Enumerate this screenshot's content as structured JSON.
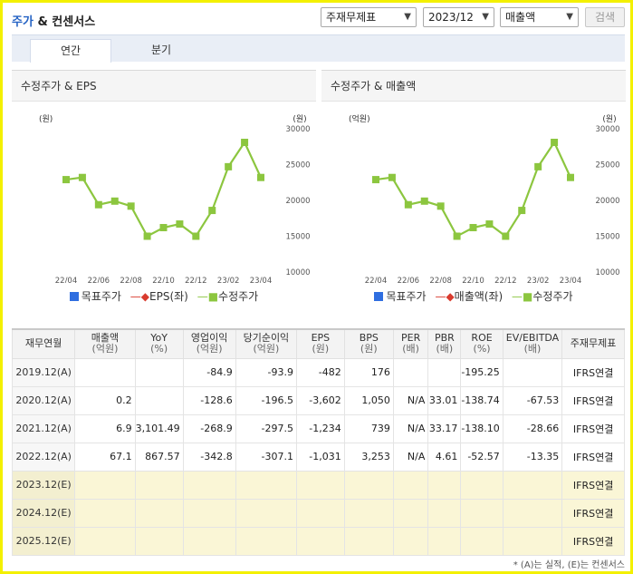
{
  "header": {
    "title_blue": "주가",
    "title_rest": " & 컨센서스",
    "select_item": "주재무제표",
    "select_period": "2023/12",
    "select_metric": "매출액",
    "search_label": "검색"
  },
  "tabs": [
    {
      "label": "연간"
    },
    {
      "label": "분기"
    }
  ],
  "charts": [
    {
      "panel_title": "수정주가 & EPS",
      "left_unit": "(원)",
      "right_unit": "(원)",
      "legend": [
        "목표주가",
        "EPS(좌)",
        "수정주가"
      ]
    },
    {
      "panel_title": "수정주가 & 매출액",
      "left_unit": "(억원)",
      "right_unit": "(원)",
      "legend": [
        "목표주가",
        "매출액(좌)",
        "수정주가"
      ]
    }
  ],
  "chart_data": [
    {
      "type": "line",
      "x": [
        "22/04",
        "22/05",
        "22/06",
        "22/07",
        "22/08",
        "22/09",
        "22/10",
        "22/11",
        "22/12",
        "23/01",
        "23/02",
        "23/03",
        "23/04"
      ],
      "x_tick_labels": [
        "22/04",
        "22/06",
        "22/08",
        "22/10",
        "22/12",
        "23/02",
        "23/04"
      ],
      "series": [
        {
          "name": "수정주가",
          "values": [
            22900,
            23200,
            19400,
            19900,
            19200,
            15000,
            16200,
            16700,
            15000,
            18600,
            24700,
            28100,
            23200
          ]
        }
      ],
      "y_right_ticks": [
        "30000",
        "25000",
        "20000",
        "15000",
        "10000"
      ],
      "y_right_range": [
        10000,
        30000
      ],
      "colors": {
        "target": "#2f6ee0",
        "eps": "#d93b2e",
        "price": "#8cc63f"
      }
    },
    {
      "type": "line",
      "x": [
        "22/04",
        "22/05",
        "22/06",
        "22/07",
        "22/08",
        "22/09",
        "22/10",
        "22/11",
        "22/12",
        "23/01",
        "23/02",
        "23/03",
        "23/04"
      ],
      "x_tick_labels": [
        "22/04",
        "22/06",
        "22/08",
        "22/10",
        "22/12",
        "23/02",
        "23/04"
      ],
      "series": [
        {
          "name": "수정주가",
          "values": [
            22900,
            23200,
            19400,
            19900,
            19200,
            15000,
            16200,
            16700,
            15000,
            18600,
            24700,
            28100,
            23200
          ]
        }
      ],
      "y_right_ticks": [
        "30000",
        "25000",
        "20000",
        "15000",
        "10000"
      ],
      "y_right_range": [
        10000,
        30000
      ],
      "colors": {
        "target": "#2f6ee0",
        "eps": "#d93b2e",
        "price": "#8cc63f"
      }
    }
  ],
  "table": {
    "headers": [
      {
        "main": "재무연월",
        "sub": ""
      },
      {
        "main": "매출액",
        "sub": "(억원)"
      },
      {
        "main": "YoY",
        "sub": "(%)"
      },
      {
        "main": "영업이익",
        "sub": "(억원)"
      },
      {
        "main": "당기순이익",
        "sub": "(억원)"
      },
      {
        "main": "EPS",
        "sub": "(원)"
      },
      {
        "main": "BPS",
        "sub": "(원)"
      },
      {
        "main": "PER",
        "sub": "(배)"
      },
      {
        "main": "PBR",
        "sub": "(배)"
      },
      {
        "main": "ROE",
        "sub": "(%)"
      },
      {
        "main": "EV/EBITDA",
        "sub": "(배)"
      },
      {
        "main": "주재무제표",
        "sub": ""
      }
    ],
    "rows": [
      {
        "est": false,
        "cells": [
          "2019.12(A)",
          "",
          "",
          "-84.9",
          "-93.9",
          "-482",
          "176",
          "",
          "",
          "-195.25",
          "",
          "IFRS연결"
        ]
      },
      {
        "est": false,
        "cells": [
          "2020.12(A)",
          "0.2",
          "",
          "-128.6",
          "-196.5",
          "-3,602",
          "1,050",
          "N/A",
          "33.01",
          "-138.74",
          "-67.53",
          "IFRS연결"
        ]
      },
      {
        "est": false,
        "cells": [
          "2021.12(A)",
          "6.9",
          "3,101.49",
          "-268.9",
          "-297.5",
          "-1,234",
          "739",
          "N/A",
          "33.17",
          "-138.10",
          "-28.66",
          "IFRS연결"
        ]
      },
      {
        "est": false,
        "cells": [
          "2022.12(A)",
          "67.1",
          "867.57",
          "-342.8",
          "-307.1",
          "-1,031",
          "3,253",
          "N/A",
          "4.61",
          "-52.57",
          "-13.35",
          "IFRS연결"
        ]
      },
      {
        "est": true,
        "cells": [
          "2023.12(E)",
          "",
          "",
          "",
          "",
          "",
          "",
          "",
          "",
          "",
          "",
          "IFRS연결"
        ]
      },
      {
        "est": true,
        "cells": [
          "2024.12(E)",
          "",
          "",
          "",
          "",
          "",
          "",
          "",
          "",
          "",
          "",
          "IFRS연결"
        ]
      },
      {
        "est": true,
        "cells": [
          "2025.12(E)",
          "",
          "",
          "",
          "",
          "",
          "",
          "",
          "",
          "",
          "",
          "IFRS연결"
        ]
      }
    ]
  },
  "footnote": "* (A)는 실적, (E)는 컨센서스"
}
